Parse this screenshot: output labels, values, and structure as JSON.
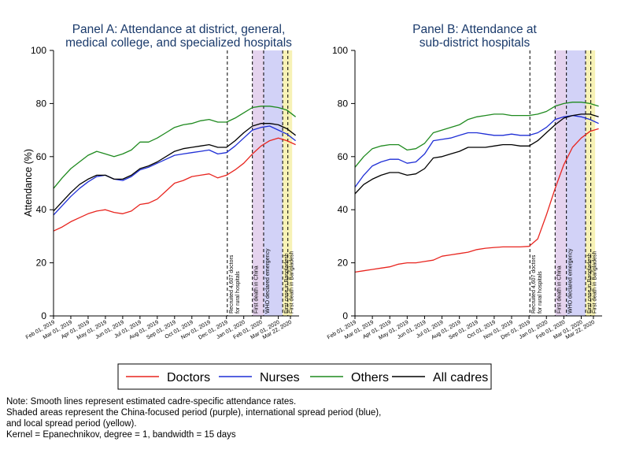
{
  "colors": {
    "doctors": "#e8251f",
    "nurses": "#1f2fd6",
    "others": "#1f8a1f",
    "all": "#000000",
    "china_period": "#e5d3ee",
    "intl_period": "#d2d2f7",
    "local_period": "#f7f2b6"
  },
  "chart_data": [
    {
      "type": "line",
      "title_line1": "Panel A: Attendance at district, general,",
      "title_line2": "medical college, and specialized hospitals",
      "ylabel": "Attendance (%)",
      "ylim": [
        0,
        100
      ],
      "yticks": [
        0,
        20,
        40,
        60,
        80,
        100
      ],
      "xlim": [
        0,
        14.2
      ],
      "xtick_labels": [
        "Feb 01, 2019",
        "Mar 01, 2019",
        "Apr 01, 2019",
        "May 01, 2019",
        "Jun 01, 2019",
        "Jul 01, 2019",
        "Aug 01, 2019",
        "Sep 01, 2019",
        "Oct 01, 2019",
        "Nov 01, 2019",
        "Dec 01, 2019",
        "Jan 01, 2020",
        "Feb 01, 2020",
        "Mar 01, 2020",
        "Mar 22, 2020"
      ],
      "xtick_values": [
        0,
        1,
        2,
        3,
        4,
        5,
        6,
        7,
        8,
        9,
        10,
        11,
        12,
        13,
        13.7
      ],
      "shaded_periods": [
        {
          "name": "China-focused period",
          "from": 11.5,
          "to": 12.15,
          "color_key": "china_period"
        },
        {
          "name": "International spread period",
          "from": 12.15,
          "to": 13.25,
          "color_key": "intl_period"
        },
        {
          "name": "Local spread period",
          "from": 13.25,
          "to": 13.8,
          "color_key": "local_period"
        }
      ],
      "vlines": [
        {
          "x": 10.05,
          "label_line1": "Recruited 4,607 doctors",
          "label_line2": "for rural hospitals"
        },
        {
          "x": 11.5,
          "label_line1": "First death in China",
          "label_line2": ""
        },
        {
          "x": 12.15,
          "label_line1": "WHO declared emergency",
          "label_line2": ""
        },
        {
          "x": 13.25,
          "label_line1": "First case in Bangladesh",
          "label_line2": ""
        },
        {
          "x": 13.55,
          "label_line1": "First death in Bangladesh",
          "label_line2": ""
        }
      ],
      "x": [
        0,
        0.5,
        1,
        1.5,
        2,
        2.5,
        3,
        3.5,
        4,
        4.5,
        5,
        5.5,
        6,
        6.5,
        7,
        7.5,
        8,
        8.5,
        9,
        9.5,
        10,
        10.5,
        11,
        11.5,
        12,
        12.5,
        13,
        13.5,
        14
      ],
      "series": [
        {
          "name": "Doctors",
          "color_key": "doctors",
          "values": [
            32,
            33.5,
            35.5,
            37,
            38.5,
            39.5,
            40,
            39,
            38.5,
            39.5,
            42,
            42.5,
            44,
            47,
            50,
            51,
            52.5,
            53,
            53.5,
            52,
            53,
            55,
            57.5,
            61,
            64,
            66,
            67,
            66,
            64.5
          ]
        },
        {
          "name": "Nurses",
          "color_key": "nurses",
          "values": [
            38,
            41.5,
            45,
            48,
            50.5,
            52.5,
            53,
            51.5,
            51,
            52.5,
            55,
            56,
            57.5,
            59,
            60.5,
            61,
            61.5,
            62,
            62.5,
            61,
            61.5,
            64,
            67,
            70,
            71,
            71.5,
            70,
            68.5,
            66
          ]
        },
        {
          "name": "Others",
          "color_key": "others",
          "values": [
            48,
            52,
            55.5,
            58,
            60.5,
            62,
            61,
            60,
            61,
            62.5,
            65.5,
            65.5,
            67,
            69,
            71,
            72,
            72.5,
            73.5,
            74,
            73,
            73,
            74.5,
            76.5,
            78.5,
            79,
            79,
            78.5,
            77.5,
            75
          ]
        },
        {
          "name": "All cadres",
          "color_key": "all",
          "values": [
            39.5,
            43,
            46.5,
            49.5,
            51.5,
            53,
            53,
            51.5,
            51.5,
            53,
            55.5,
            56.5,
            58,
            60,
            62,
            63,
            63.5,
            64,
            64.5,
            63.5,
            63.5,
            66,
            69,
            71.5,
            72.5,
            72.5,
            72,
            70.5,
            68
          ]
        }
      ]
    },
    {
      "type": "line",
      "title_line1": "Panel B: Attendance at",
      "title_line2": "sub-district hospitals",
      "ylabel": "",
      "ylim": [
        0,
        100
      ],
      "yticks": [
        0,
        20,
        40,
        60,
        80,
        100
      ],
      "xlim": [
        0,
        14.2
      ],
      "xtick_labels": [
        "Feb 01, 2019",
        "Mar 01, 2019",
        "Apr 01, 2019",
        "May 01, 2019",
        "Jun 01, 2019",
        "Jul 01, 2019",
        "Aug 01, 2019",
        "Sep 01, 2019",
        "Oct 01, 2019",
        "Nov 01, 2019",
        "Dec 01, 2019",
        "Jan 01, 2020",
        "Feb 01, 2020",
        "Mar 01, 2020",
        "Mar 22, 2020"
      ],
      "xtick_values": [
        0,
        1,
        2,
        3,
        4,
        5,
        6,
        7,
        8,
        9,
        10,
        11,
        12,
        13,
        13.7
      ],
      "shaded_periods": [
        {
          "name": "China-focused period",
          "from": 11.5,
          "to": 12.15,
          "color_key": "china_period"
        },
        {
          "name": "International spread period",
          "from": 12.15,
          "to": 13.25,
          "color_key": "intl_period"
        },
        {
          "name": "Local spread period",
          "from": 13.25,
          "to": 13.8,
          "color_key": "local_period"
        }
      ],
      "vlines": [
        {
          "x": 10.05,
          "label_line1": "Recruited 4,607 doctors",
          "label_line2": "for rural hospitals"
        },
        {
          "x": 11.5,
          "label_line1": "First death in China",
          "label_line2": ""
        },
        {
          "x": 12.15,
          "label_line1": "WHO declared emergency",
          "label_line2": ""
        },
        {
          "x": 13.25,
          "label_line1": "First case in Bangladesh",
          "label_line2": ""
        },
        {
          "x": 13.55,
          "label_line1": "First death in Bangladesh",
          "label_line2": ""
        }
      ],
      "x": [
        0,
        0.5,
        1,
        1.5,
        2,
        2.5,
        3,
        3.5,
        4,
        4.5,
        5,
        5.5,
        6,
        6.5,
        7,
        7.5,
        8,
        8.5,
        9,
        9.5,
        10,
        10.5,
        11,
        11.5,
        12,
        12.5,
        13,
        13.5,
        14
      ],
      "series": [
        {
          "name": "Doctors",
          "color_key": "doctors",
          "values": [
            16.5,
            17,
            17.5,
            18,
            18.5,
            19.5,
            20,
            20,
            20.5,
            21,
            22.5,
            23,
            23.5,
            24,
            25,
            25.5,
            25.8,
            26,
            26,
            26,
            26.2,
            29,
            38,
            48,
            57,
            63.5,
            67,
            69.5,
            70.5
          ]
        },
        {
          "name": "Nurses",
          "color_key": "nurses",
          "values": [
            48.5,
            53,
            56.5,
            58,
            59,
            59,
            57.5,
            58,
            61,
            66,
            66.5,
            67,
            68,
            69,
            69,
            68.5,
            68,
            68,
            68.5,
            68,
            68,
            69,
            71,
            74,
            75,
            75.5,
            75,
            74,
            72.5
          ]
        },
        {
          "name": "Others",
          "color_key": "others",
          "values": [
            56,
            60,
            63,
            64,
            64.5,
            64.5,
            62.5,
            63,
            65,
            69,
            70,
            71,
            72,
            74,
            75,
            75.5,
            76,
            76,
            75.5,
            75.5,
            75.5,
            76,
            77,
            79,
            80,
            80.5,
            80.5,
            80,
            79
          ]
        },
        {
          "name": "All cadres",
          "color_key": "all",
          "values": [
            46,
            49.5,
            51.5,
            53,
            54,
            54,
            53,
            53.5,
            55.5,
            59.5,
            60,
            61,
            62,
            63.5,
            63.5,
            63.5,
            64,
            64.5,
            64.5,
            64,
            64,
            66,
            69,
            72,
            74.5,
            75.5,
            76,
            76,
            75
          ]
        }
      ]
    }
  ],
  "legend": {
    "items": [
      {
        "label": "Doctors",
        "color_key": "doctors"
      },
      {
        "label": "Nurses",
        "color_key": "nurses"
      },
      {
        "label": "Others",
        "color_key": "others"
      },
      {
        "label": "All cadres",
        "color_key": "all"
      }
    ]
  },
  "notes": {
    "line1": "Note: Smooth lines represent estimated cadre-specific attendance rates.",
    "line2": "Shaded areas represent the China-focused period (purple), international spread period (blue),",
    "line3": "and local spread period (yellow).",
    "line4": "Kernel = Epanechnikov, degree = 1, bandwidth = 15 days"
  }
}
